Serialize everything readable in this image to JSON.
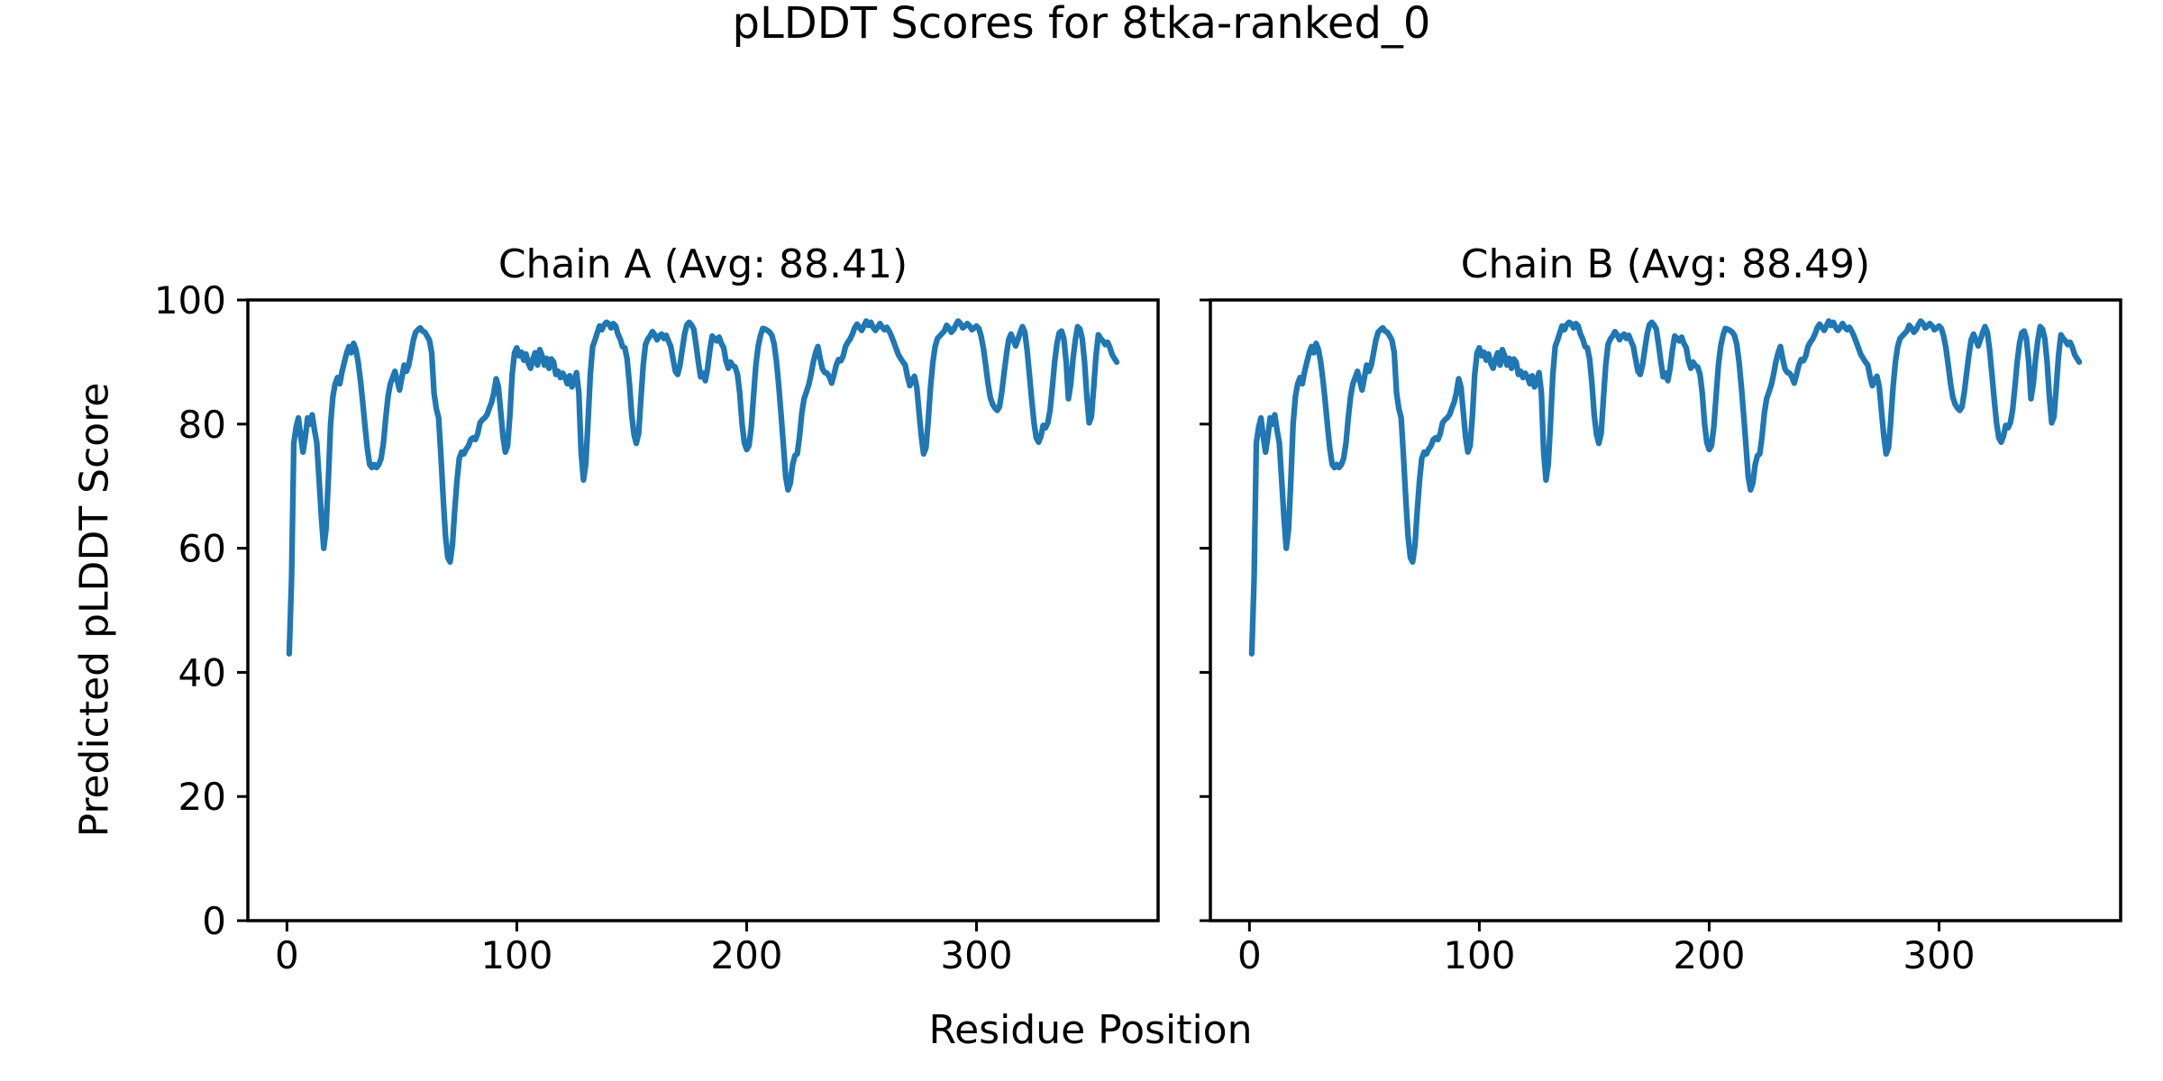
{
  "figure": {
    "title": "pLDDT Scores for 8tka-ranked_0",
    "xlabel": "Residue Position",
    "ylabel": "Predicted pLDDT Score",
    "background_color": "#ffffff",
    "line_color": "#1f77b4",
    "spine_color": "#000000",
    "text_color": "#000000"
  },
  "chart_data": [
    {
      "type": "line",
      "title": "Chain A (Avg: 88.41)",
      "series_name": "Chain A pLDDT",
      "average": 88.41,
      "x_start": 1,
      "x_step": 1,
      "xlim": [
        -17,
        379
      ],
      "ylim": [
        0,
        100
      ],
      "xticks": [
        0,
        100,
        200,
        300
      ],
      "yticks": [
        0,
        20,
        40,
        60,
        80,
        100
      ],
      "grid": false,
      "legend": "none",
      "values": [
        43,
        55,
        77,
        79.5,
        81,
        78,
        75.5,
        78,
        81,
        80,
        81.5,
        79,
        77,
        71,
        65,
        60,
        63,
        71,
        80,
        84.5,
        86.5,
        87.5,
        86.5,
        88.5,
        90,
        91.5,
        92.5,
        91.5,
        93,
        92,
        90,
        87,
        83.5,
        79.5,
        76,
        73.5,
        73,
        73.5,
        73,
        73.5,
        74.5,
        77,
        81,
        84.5,
        86.5,
        87.5,
        88.5,
        87,
        85.5,
        87.5,
        89.5,
        88.5,
        89.5,
        91.5,
        93.5,
        94.8,
        95.2,
        95.5,
        95,
        94.8,
        94.2,
        93.5,
        91.5,
        85,
        82.5,
        81,
        75,
        68,
        62,
        58.5,
        57.8,
        60.5,
        66,
        71,
        74.5,
        75.5,
        75.2,
        76,
        76.5,
        77.5,
        77.8,
        77.5,
        78.5,
        80.2,
        80.7,
        81,
        81.5,
        82.5,
        83.5,
        85,
        87.3,
        86,
        82,
        78,
        75.5,
        76.5,
        81.5,
        88,
        91.5,
        92.3,
        91,
        91.6,
        90.3,
        91.3,
        89.8,
        89,
        90.5,
        91.5,
        89.5,
        92,
        91,
        89.5,
        90.6,
        89,
        90.5,
        90,
        88,
        88.5,
        87.5,
        88.2,
        87.5,
        86.5,
        87.8,
        86,
        87,
        88.3,
        85,
        75.5,
        71,
        73.5,
        80.5,
        88,
        92.5,
        93.5,
        94.7,
        95.8,
        95.2,
        96,
        96.4,
        96.2,
        95.5,
        96.2,
        95.8,
        94.5,
        93.7,
        92.5,
        92.3,
        90.5,
        86.5,
        81.5,
        78.3,
        76.9,
        78.5,
        84,
        89.5,
        92.8,
        93.7,
        94.2,
        94.9,
        94.4,
        93.6,
        94.2,
        94.5,
        93.8,
        94.3,
        93.4,
        92.5,
        90.5,
        88.5,
        88,
        89.5,
        92,
        94.5,
        96,
        96.4,
        96,
        95.3,
        92.8,
        90,
        87.6,
        88.2,
        87,
        89,
        92,
        94.2,
        93.8,
        93.4,
        94,
        93,
        92.3,
        90.2,
        89,
        90,
        89.4,
        89.2,
        88,
        85,
        80,
        77,
        75.9,
        76.5,
        79.5,
        84.5,
        89.5,
        92.5,
        94.3,
        95.4,
        95.3,
        95.1,
        94.8,
        94.3,
        92.8,
        90,
        86,
        81.5,
        76.5,
        71.5,
        69.4,
        70.5,
        73.5,
        74.9,
        75.2,
        78,
        81.8,
        84.1,
        85.2,
        86.3,
        88,
        90,
        91.5,
        92.5,
        90.5,
        88.9,
        88.3,
        88.2,
        87.6,
        86.6,
        88,
        89.5,
        90.4,
        90.2,
        91,
        92.5,
        93.2,
        93.7,
        94.5,
        95.5,
        96.1,
        95.6,
        95.1,
        95.8,
        96.6,
        95.9,
        96.4,
        95.6,
        95.1,
        95.6,
        96.2,
        95.6,
        95.2,
        95.6,
        95,
        94.2,
        93.2,
        92.2,
        91.2,
        90.6,
        90,
        89.5,
        87.6,
        86.2,
        87.1,
        87.7,
        86,
        82,
        78,
        75.2,
        76.2,
        80.5,
        86,
        90,
        92.5,
        93.8,
        94.2,
        94.6,
        95,
        95.9,
        95.5,
        94.8,
        95.2,
        96,
        96.6,
        96.2,
        95.5,
        95.8,
        96.2,
        95.8,
        95.2,
        95.5,
        95.8,
        95.4,
        94.2,
        92.2,
        89.5,
        86.5,
        84.3,
        83.2,
        82.6,
        82.2,
        82.8,
        85.2,
        88.2,
        91.2,
        93.6,
        94.5,
        93.6,
        92.6,
        93.6,
        94.8,
        95.7,
        94.8,
        92,
        88,
        84,
        80.2,
        77.8,
        77.1,
        78,
        79.8,
        79.4,
        80.2,
        82.2,
        86,
        90,
        93,
        94.7,
        95,
        93.8,
        90,
        84.1,
        86.5,
        90.5,
        93.6,
        95.7,
        95.3,
        93.8,
        90,
        84.5,
        80.2,
        81.2,
        86,
        91,
        94.4,
        93.8,
        93.4,
        92.8,
        93.2,
        92.4,
        91.2,
        90.6,
        90
      ]
    },
    {
      "type": "line",
      "title": "Chain B (Avg: 88.49)",
      "series_name": "Chain B pLDDT",
      "average": 88.49,
      "x_start": 1,
      "x_step": 1,
      "xlim": [
        -17,
        379
      ],
      "ylim": [
        0,
        100
      ],
      "xticks": [
        0,
        100,
        200,
        300
      ],
      "yticks": [
        0,
        20,
        40,
        60,
        80,
        100
      ],
      "grid": false,
      "legend": "none",
      "values": [
        43,
        55,
        77,
        79.5,
        81,
        78,
        75.5,
        78,
        81,
        80,
        81.5,
        79,
        77,
        71,
        65,
        60,
        63,
        71,
        80,
        84.5,
        86.5,
        87.5,
        86.5,
        88.5,
        90,
        91.5,
        92.5,
        91.5,
        93,
        92,
        90,
        87,
        83.5,
        79.5,
        76,
        73.5,
        73,
        73.5,
        73,
        73.5,
        74.5,
        77,
        81,
        84.5,
        86.5,
        87.5,
        88.5,
        87,
        85.5,
        87.5,
        89.5,
        88.5,
        89.5,
        91.5,
        93.5,
        94.8,
        95.2,
        95.5,
        95,
        94.8,
        94.2,
        93.5,
        91.5,
        85,
        82.5,
        81,
        75,
        68,
        62,
        58.5,
        57.8,
        60.5,
        66,
        71,
        74.5,
        75.5,
        75.2,
        76,
        76.5,
        77.5,
        77.8,
        77.5,
        78.5,
        80.2,
        80.7,
        81,
        81.5,
        82.5,
        83.5,
        85,
        87.3,
        86,
        82,
        78,
        75.5,
        76.5,
        81.5,
        88,
        91.5,
        92.3,
        91,
        91.6,
        90.3,
        91.3,
        89.8,
        89,
        90.5,
        91.5,
        89.5,
        92,
        91,
        89.5,
        90.6,
        89,
        90.5,
        90,
        88,
        88.5,
        87.5,
        88.2,
        87.5,
        86.5,
        87.8,
        86,
        87,
        88.3,
        85,
        75.5,
        71,
        73.5,
        80.5,
        88,
        92.5,
        93.5,
        94.7,
        95.8,
        95.2,
        96,
        96.4,
        96.2,
        95.5,
        96.2,
        95.8,
        94.5,
        93.7,
        92.5,
        92.3,
        90.5,
        86.5,
        81.5,
        78.3,
        76.9,
        78.5,
        84,
        89.5,
        92.8,
        93.7,
        94.2,
        94.9,
        94.4,
        93.6,
        94.2,
        94.5,
        93.8,
        94.3,
        93.4,
        92.5,
        90.5,
        88.5,
        88,
        89.5,
        92,
        94.5,
        96,
        96.4,
        96,
        95.3,
        92.8,
        90,
        87.6,
        88.2,
        87,
        89,
        92,
        94.2,
        93.8,
        93.4,
        94,
        93,
        92.3,
        90.2,
        89,
        90,
        89.4,
        89.2,
        88,
        85,
        80,
        77,
        75.9,
        76.5,
        79.5,
        84.5,
        89.5,
        92.5,
        94.3,
        95.4,
        95.3,
        95.1,
        94.8,
        94.3,
        92.8,
        90,
        86,
        81.5,
        76.5,
        71.5,
        69.4,
        70.5,
        73.5,
        74.9,
        75.2,
        78,
        81.8,
        84.1,
        85.2,
        86.3,
        88,
        90,
        91.5,
        92.5,
        90.5,
        88.9,
        88.3,
        88.2,
        87.6,
        86.6,
        88,
        89.5,
        90.4,
        90.2,
        91,
        92.5,
        93.2,
        93.7,
        94.5,
        95.5,
        96.1,
        95.6,
        95.1,
        95.8,
        96.6,
        95.9,
        96.4,
        95.6,
        95.1,
        95.6,
        96.2,
        95.6,
        95.2,
        95.6,
        95,
        94.2,
        93.2,
        92.2,
        91.2,
        90.6,
        90,
        89.5,
        87.6,
        86.2,
        87.1,
        87.7,
        86,
        82,
        78,
        75.2,
        76.2,
        80.5,
        86,
        90,
        92.5,
        93.8,
        94.2,
        94.6,
        95,
        95.9,
        95.5,
        94.8,
        95.2,
        96,
        96.6,
        96.2,
        95.5,
        95.8,
        96.2,
        95.8,
        95.2,
        95.5,
        95.8,
        95.4,
        94.2,
        92.2,
        89.5,
        86.5,
        84.3,
        83.2,
        82.6,
        82.2,
        82.8,
        85.2,
        88.2,
        91.2,
        93.6,
        94.5,
        93.6,
        92.6,
        93.6,
        94.8,
        95.7,
        94.8,
        92,
        88,
        84,
        80.2,
        77.8,
        77.1,
        78,
        79.8,
        79.4,
        80.2,
        82.2,
        86,
        90,
        93,
        94.7,
        95,
        93.8,
        90,
        84.1,
        86.5,
        90.5,
        93.6,
        95.7,
        95.3,
        93.8,
        90,
        84.5,
        80.2,
        81.2,
        86,
        91,
        94.4,
        93.8,
        93.4,
        92.8,
        93.2,
        92.4,
        91.2,
        90.6,
        90
      ]
    }
  ]
}
